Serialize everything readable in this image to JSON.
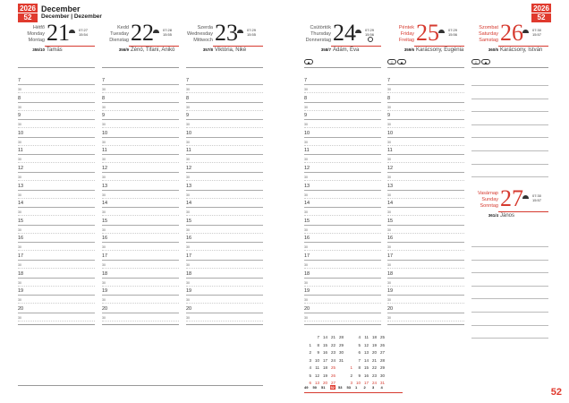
{
  "header": {
    "year": "2026",
    "week": "52",
    "month": "December",
    "month_sub": "December | Dezember"
  },
  "days": [
    {
      "names": [
        "Hétfő",
        "Monday",
        "Montag"
      ],
      "num": "21",
      "sunrise": "07:27",
      "sunset": "15:54",
      "doy": "355/10",
      "nameday": "Tamás",
      "red": false
    },
    {
      "names": [
        "Kedd",
        "Tuesday",
        "Dienstag"
      ],
      "num": "22",
      "sunrise": "07:28",
      "sunset": "15:55",
      "doy": "356/9",
      "nameday": "Zénó, Tifani, Anikó",
      "red": false
    },
    {
      "names": [
        "Szerda",
        "Wednesday",
        "Mittwoch"
      ],
      "num": "23",
      "sunrise": "07:29",
      "sunset": "15:55",
      "doy": "357/8",
      "nameday": "Viktória, Niké",
      "red": false
    },
    {
      "names": [
        "Csütörtök",
        "Thursday",
        "Donnerstag"
      ],
      "num": "24",
      "sunrise": "07:29",
      "sunset": "15:56",
      "doy": "358/7",
      "nameday": "Ádám, Éva",
      "red": false
    },
    {
      "names": [
        "Péntek",
        "Friday",
        "Freitag"
      ],
      "num": "25",
      "sunrise": "07:29",
      "sunset": "15:56",
      "doy": "359/6",
      "nameday": "Karácsony, Eugénia",
      "red": true
    },
    {
      "names": [
        "Szombat",
        "Saturday",
        "Samstag"
      ],
      "num": "26",
      "sunrise": "07:30",
      "sunset": "15:57",
      "doy": "360/5",
      "nameday": "Karácsony, István",
      "red": true
    },
    {
      "names": [
        "Vasárnap",
        "Sunday",
        "Sonntag"
      ],
      "num": "27",
      "sunrise": "07:30",
      "sunset": "15:57",
      "doy": "361/4",
      "nameday": "János",
      "red": true
    }
  ],
  "hours": [
    "7",
    "8",
    "9",
    "10",
    "11",
    "12",
    "13",
    "14",
    "15",
    "16",
    "17",
    "18",
    "19",
    "20"
  ],
  "half_label": "30",
  "mini_calendars": [
    {
      "rows": [
        [
          "",
          "7",
          "14",
          "21",
          "28"
        ],
        [
          "1",
          "8",
          "15",
          "22",
          "29"
        ],
        [
          "2",
          "9",
          "16",
          "23",
          "30"
        ],
        [
          "3",
          "10",
          "17",
          "24",
          "31"
        ],
        [
          "4",
          "11",
          "18",
          "25",
          ""
        ],
        [
          "5",
          "12",
          "19",
          "26",
          ""
        ],
        [
          "6",
          "13",
          "20",
          "27",
          ""
        ]
      ],
      "red": [
        "25",
        "26",
        "6",
        "13",
        "20",
        "27"
      ]
    },
    {
      "rows": [
        [
          "",
          "4",
          "11",
          "18",
          "25"
        ],
        [
          "",
          "5",
          "12",
          "19",
          "26"
        ],
        [
          "",
          "6",
          "13",
          "20",
          "27"
        ],
        [
          "",
          "7",
          "14",
          "21",
          "28"
        ],
        [
          "1",
          "8",
          "15",
          "22",
          "29"
        ],
        [
          "2",
          "9",
          "16",
          "23",
          "30"
        ],
        [
          "3",
          "10",
          "17",
          "24",
          "31"
        ]
      ],
      "red": [
        "1",
        "3",
        "10",
        "17",
        "24",
        "31"
      ]
    }
  ],
  "week_numbers": [
    "49",
    "50",
    "51",
    "52",
    "53",
    "53",
    "1",
    "2",
    "3",
    "4"
  ],
  "current_week": "52",
  "page_number": "52"
}
